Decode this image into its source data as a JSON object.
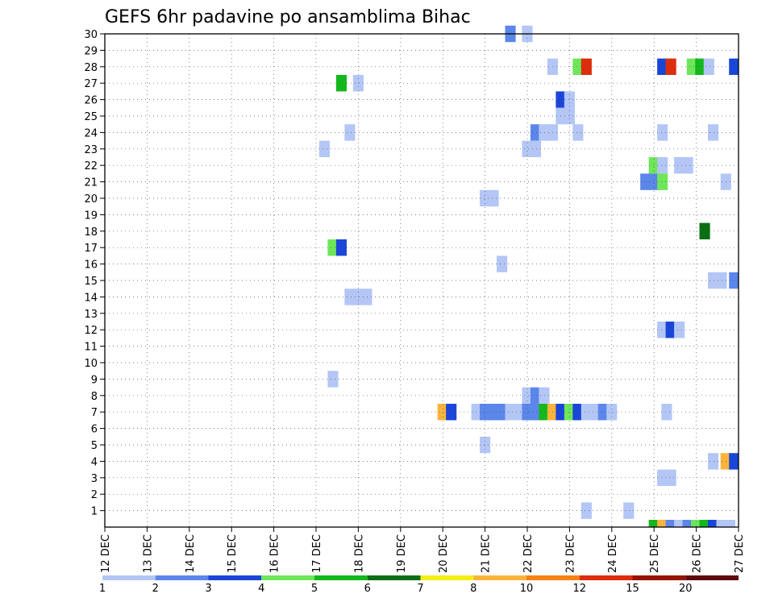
{
  "chart_data": {
    "type": "heatmap",
    "title": "GEFS 6hr padavine po ansamblima Bihac",
    "y_ticks": [
      "1",
      "2",
      "3",
      "4",
      "5",
      "6",
      "7",
      "8",
      "9",
      "10",
      "11",
      "12",
      "13",
      "14",
      "15",
      "16",
      "17",
      "18",
      "19",
      "20",
      "21",
      "22",
      "23",
      "24",
      "25",
      "26",
      "27",
      "28",
      "29",
      "30"
    ],
    "x_ticks": [
      "12 DEC",
      "13 DEC",
      "14 DEC",
      "15 DEC",
      "16 DEC",
      "17 DEC",
      "18 DEC",
      "19 DEC",
      "20 DEC",
      "21 DEC",
      "22 DEC",
      "23 DEC",
      "24 DEC",
      "25 DEC",
      "26 DEC",
      "27 DEC"
    ],
    "x_range_days": [
      12,
      27
    ],
    "y_range": [
      0,
      30
    ],
    "grid": "dotted",
    "colorbar": {
      "position": "bottom",
      "colors": [
        "#b3c6f5",
        "#5b86ea",
        "#1a46d8",
        "#6ee65a",
        "#13b81c",
        "#0a6e14",
        "#f4ee16",
        "#fab43c",
        "#f58214",
        "#dc2d0c",
        "#961400",
        "#5f0a0a"
      ],
      "labels": [
        "1",
        "2",
        "3",
        "4",
        "5",
        "6",
        "7",
        "8",
        "10",
        "12",
        "15",
        "20"
      ]
    },
    "cells": [
      [
        21.6,
        30,
        1
      ],
      [
        22.0,
        30,
        0
      ],
      [
        22.6,
        28,
        0
      ],
      [
        23.2,
        28,
        3
      ],
      [
        23.4,
        28,
        9
      ],
      [
        25.2,
        28,
        2
      ],
      [
        25.4,
        28,
        9
      ],
      [
        25.9,
        28,
        3
      ],
      [
        26.1,
        28,
        4
      ],
      [
        26.3,
        28,
        0
      ],
      [
        26.9,
        28,
        2
      ],
      [
        17.6,
        27,
        4
      ],
      [
        18.0,
        27,
        0
      ],
      [
        22.8,
        26,
        2
      ],
      [
        23.0,
        26,
        0
      ],
      [
        22.8,
        25,
        0
      ],
      [
        23.0,
        25,
        0
      ],
      [
        17.8,
        24,
        0
      ],
      [
        22.2,
        24,
        1
      ],
      [
        22.4,
        24,
        0
      ],
      [
        22.6,
        24,
        0
      ],
      [
        23.2,
        24,
        0
      ],
      [
        25.2,
        24,
        0
      ],
      [
        26.4,
        24,
        0
      ],
      [
        17.2,
        23,
        0
      ],
      [
        22.0,
        23,
        0
      ],
      [
        22.2,
        23,
        0
      ],
      [
        25.0,
        22,
        3
      ],
      [
        25.2,
        22,
        0
      ],
      [
        25.6,
        22,
        0
      ],
      [
        25.8,
        22,
        0
      ],
      [
        24.8,
        21,
        1
      ],
      [
        25.0,
        21,
        1
      ],
      [
        25.2,
        21,
        3
      ],
      [
        26.7,
        21,
        0
      ],
      [
        21.0,
        20,
        0
      ],
      [
        21.2,
        20,
        0
      ],
      [
        26.2,
        18,
        5
      ],
      [
        17.4,
        17,
        3
      ],
      [
        17.6,
        17,
        2
      ],
      [
        21.4,
        16,
        0
      ],
      [
        26.4,
        15,
        0
      ],
      [
        26.6,
        15,
        0
      ],
      [
        26.9,
        15,
        1
      ],
      [
        17.8,
        14,
        0
      ],
      [
        18.0,
        14,
        0
      ],
      [
        18.2,
        14,
        0
      ],
      [
        25.2,
        12,
        0
      ],
      [
        25.4,
        12,
        2
      ],
      [
        25.6,
        12,
        0
      ],
      [
        17.4,
        9,
        0
      ],
      [
        22.0,
        8,
        0
      ],
      [
        22.2,
        8,
        1
      ],
      [
        22.4,
        8,
        0
      ],
      [
        20.0,
        7,
        7
      ],
      [
        20.2,
        7,
        2
      ],
      [
        20.8,
        7,
        0
      ],
      [
        21.0,
        7,
        1
      ],
      [
        21.2,
        7,
        1
      ],
      [
        21.4,
        7,
        1
      ],
      [
        21.6,
        7,
        0
      ],
      [
        21.8,
        7,
        0
      ],
      [
        22.0,
        7,
        1
      ],
      [
        22.2,
        7,
        1
      ],
      [
        22.4,
        7,
        4
      ],
      [
        22.6,
        7,
        7
      ],
      [
        22.8,
        7,
        2
      ],
      [
        23.0,
        7,
        3
      ],
      [
        23.2,
        7,
        2
      ],
      [
        23.4,
        7,
        0
      ],
      [
        23.6,
        7,
        0
      ],
      [
        23.8,
        7,
        1
      ],
      [
        24.0,
        7,
        0
      ],
      [
        25.3,
        7,
        0
      ],
      [
        21.0,
        5,
        0
      ],
      [
        26.4,
        4,
        0
      ],
      [
        26.7,
        4,
        7
      ],
      [
        26.9,
        4,
        2
      ],
      [
        25.2,
        3,
        0
      ],
      [
        25.4,
        3,
        0
      ],
      [
        23.4,
        1,
        0
      ],
      [
        24.4,
        1,
        0
      ]
    ],
    "bottom_strip": [
      [
        25.0,
        4
      ],
      [
        25.2,
        7
      ],
      [
        25.4,
        1
      ],
      [
        25.6,
        0
      ],
      [
        25.8,
        1
      ],
      [
        26.0,
        3
      ],
      [
        26.2,
        4
      ],
      [
        26.4,
        2
      ],
      [
        26.6,
        0
      ],
      [
        26.8,
        0
      ]
    ]
  }
}
